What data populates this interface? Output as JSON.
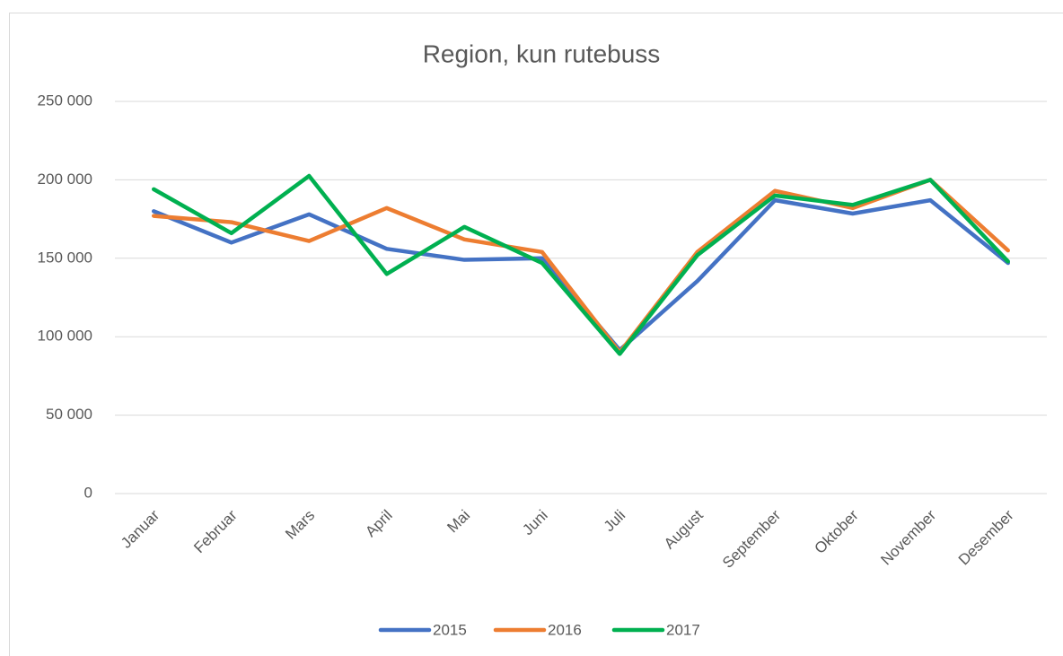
{
  "chart_data": {
    "type": "line",
    "title": "Region, kun rutebuss",
    "categories": [
      "Januar",
      "Februar",
      "Mars",
      "April",
      "Mai",
      "Juni",
      "Juli",
      "August",
      "September",
      "Oktober",
      "November",
      "Desember"
    ],
    "series": [
      {
        "name": "2015",
        "color": "#4472c4",
        "values": [
          180000,
          160000,
          178000,
          156000,
          149000,
          150000,
          91500,
          135500,
          187000,
          178500,
          187000,
          147000
        ]
      },
      {
        "name": "2016",
        "color": "#ed7d31",
        "values": [
          177000,
          173000,
          161000,
          182000,
          162000,
          154000,
          90000,
          154000,
          193000,
          182000,
          200000,
          155000
        ]
      },
      {
        "name": "2017",
        "color": "#00b050",
        "values": [
          194000,
          166000,
          202500,
          140000,
          170000,
          147000,
          89000,
          152000,
          190000,
          184000,
          200000,
          148000
        ]
      }
    ],
    "ylim": [
      0,
      250000
    ],
    "yticks": [
      0,
      {
        "value": 50000,
        "label": "50 000"
      },
      {
        "value": 100000,
        "label": "100 000"
      },
      {
        "value": 150000,
        "label": "150 000"
      },
      {
        "value": 200000,
        "label": "200 000"
      },
      {
        "value": 250000,
        "label": "250 000"
      }
    ],
    "grid": true,
    "legend": "bottom"
  }
}
